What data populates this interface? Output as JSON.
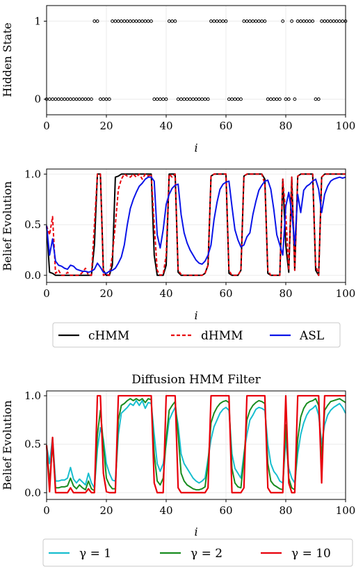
{
  "chart_data": [
    {
      "type": "scatter",
      "title": "",
      "xlabel": "i",
      "ylabel": "Hidden State",
      "xlim": [
        0,
        100
      ],
      "ylim": [
        -0.2,
        1.2
      ],
      "xticks": [
        0,
        20,
        40,
        60,
        80,
        100
      ],
      "yticks": [
        0,
        1
      ],
      "grid": true,
      "series": [
        {
          "values": [
            0,
            0,
            0,
            0,
            0,
            0,
            0,
            0,
            0,
            0,
            0,
            0,
            0,
            0,
            0,
            0,
            1,
            1,
            0,
            0,
            0,
            0,
            1,
            1,
            1,
            1,
            1,
            1,
            1,
            1,
            1,
            1,
            1,
            1,
            1,
            1,
            0,
            0,
            0,
            0,
            0,
            1,
            1,
            1,
            0,
            0,
            0,
            0,
            0,
            0,
            0,
            0,
            0,
            0,
            0,
            1,
            1,
            1,
            1,
            1,
            1,
            0,
            0,
            0,
            0,
            0,
            1,
            1,
            1,
            1,
            1,
            1,
            1,
            1,
            0,
            0,
            0,
            0,
            0,
            1,
            0,
            0,
            1,
            0,
            1,
            1,
            1,
            1,
            1,
            1,
            0,
            0,
            1,
            1,
            1,
            1,
            1,
            1,
            1,
            1,
            1
          ]
        }
      ]
    },
    {
      "type": "line",
      "title": "",
      "xlabel": "i",
      "ylabel": "Belief Evolution",
      "xlim": [
        0,
        100
      ],
      "ylim": [
        -0.07,
        1.05
      ],
      "xticks": [
        0,
        20,
        40,
        60,
        80,
        100
      ],
      "yticks": [
        0,
        0.5,
        1
      ],
      "ytick_labels": [
        "0.0",
        "0.5",
        "1.0"
      ],
      "grid": true,
      "legend": "below",
      "series": [
        {
          "name": "cHMM",
          "color": "#000000",
          "dash": "solid",
          "values": [
            0.49,
            0.03,
            0.02,
            0,
            0,
            0,
            0,
            0,
            0,
            0,
            0,
            0,
            0,
            0,
            0,
            0,
            0.3,
            1,
            1,
            0.05,
            0,
            0,
            0.1,
            0.97,
            0.98,
            1,
            1,
            1,
            1,
            1,
            1,
            1,
            1,
            1,
            1,
            1,
            0.2,
            0,
            0,
            0,
            0.1,
            1,
            1,
            1,
            0.03,
            0,
            0,
            0,
            0,
            0,
            0,
            0,
            0,
            0.02,
            0.1,
            0.98,
            1,
            1,
            1,
            1,
            1,
            0.02,
            0,
            0,
            0,
            0.05,
            0.98,
            1,
            1,
            1,
            1,
            1,
            1,
            0.95,
            0.02,
            0,
            0,
            0,
            0,
            0.95,
            0.3,
            0.03,
            0.97,
            0.05,
            0.98,
            1,
            1,
            1,
            1,
            1,
            0.05,
            0,
            0.97,
            1,
            1,
            1,
            1,
            1,
            1,
            1,
            1
          ]
        },
        {
          "name": "dHMM",
          "color": "#e8000b",
          "dash": "dashed",
          "values": [
            0.49,
            0.4,
            0.58,
            0.02,
            0.05,
            0,
            0,
            0.03,
            0,
            0,
            0,
            0,
            0.03,
            0.07,
            0,
            0,
            0.5,
            1,
            1,
            0,
            0.01,
            0,
            0.2,
            0.5,
            0.85,
            0.95,
            1,
            0.98,
            0.97,
            1,
            0.97,
            1,
            0.95,
            1,
            0.98,
            1,
            0.5,
            0.05,
            0,
            0.01,
            0.2,
            1,
            0.97,
            1,
            0.05,
            0.01,
            0,
            0,
            0,
            0,
            0,
            0,
            0,
            0.02,
            0.1,
            0.98,
            1,
            1,
            1,
            1,
            1,
            0.05,
            0,
            0,
            0,
            0.05,
            0.98,
            1,
            1,
            1,
            1,
            1,
            1,
            0.9,
            0.05,
            0,
            0,
            0,
            0,
            0.95,
            0.6,
            0.05,
            0.97,
            0.05,
            0.98,
            1,
            1,
            1,
            1,
            1,
            0.1,
            0,
            0.97,
            1,
            1,
            1,
            1,
            1,
            1,
            1,
            1
          ]
        },
        {
          "name": "ASL",
          "color": "#0a14e8",
          "dash": "solid",
          "values": [
            0.49,
            0.2,
            0.36,
            0.14,
            0.1,
            0.09,
            0.07,
            0.06,
            0.1,
            0.09,
            0.06,
            0.05,
            0.04,
            0.04,
            0.03,
            0.04,
            0.06,
            0.12,
            0.08,
            0.03,
            0.02,
            0.04,
            0.05,
            0.07,
            0.12,
            0.18,
            0.3,
            0.5,
            0.66,
            0.75,
            0.82,
            0.88,
            0.91,
            0.95,
            0.97,
            0.97,
            0.93,
            0.4,
            0.27,
            0.45,
            0.7,
            0.8,
            0.86,
            0.89,
            0.9,
            0.6,
            0.42,
            0.32,
            0.25,
            0.2,
            0.15,
            0.12,
            0.11,
            0.14,
            0.2,
            0.3,
            0.55,
            0.72,
            0.85,
            0.9,
            0.92,
            0.93,
            0.68,
            0.45,
            0.35,
            0.28,
            0.3,
            0.38,
            0.42,
            0.6,
            0.73,
            0.84,
            0.89,
            0.93,
            0.94,
            0.85,
            0.65,
            0.4,
            0.3,
            0.2,
            0.68,
            0.82,
            0.62,
            0.3,
            0.8,
            0.62,
            0.84,
            0.88,
            0.9,
            0.93,
            0.95,
            0.85,
            0.62,
            0.8,
            0.88,
            0.93,
            0.95,
            0.96,
            0.97,
            0.96,
            0.97
          ]
        }
      ]
    },
    {
      "type": "line",
      "title": "Diffusion HMM Filter",
      "xlabel": "i",
      "ylabel": "Belief Evolution",
      "xlim": [
        0,
        100
      ],
      "ylim": [
        -0.07,
        1.05
      ],
      "xticks": [
        0,
        20,
        40,
        60,
        80,
        100
      ],
      "yticks": [
        0,
        0.5,
        1
      ],
      "ytick_labels": [
        "0.0",
        "0.5",
        "1.0"
      ],
      "grid": true,
      "legend": "below",
      "series": [
        {
          "name": "γ = 1",
          "color": "#17becf",
          "dash": "solid",
          "values": [
            0.49,
            0.3,
            0.57,
            0.12,
            0.12,
            0.13,
            0.13,
            0.15,
            0.26,
            0.14,
            0.1,
            0.14,
            0.11,
            0.08,
            0.2,
            0.1,
            0.05,
            0.45,
            0.67,
            0.55,
            0.3,
            0.2,
            0.13,
            0.12,
            0.6,
            0.82,
            0.85,
            0.88,
            0.92,
            0.9,
            0.95,
            0.9,
            0.95,
            0.87,
            0.93,
            0.92,
            0.6,
            0.3,
            0.22,
            0.3,
            0.5,
            0.75,
            0.82,
            0.88,
            0.7,
            0.4,
            0.3,
            0.25,
            0.2,
            0.15,
            0.12,
            0.1,
            0.12,
            0.15,
            0.35,
            0.55,
            0.68,
            0.75,
            0.82,
            0.86,
            0.88,
            0.85,
            0.4,
            0.25,
            0.2,
            0.15,
            0.4,
            0.6,
            0.75,
            0.8,
            0.86,
            0.88,
            0.87,
            0.85,
            0.5,
            0.3,
            0.22,
            0.18,
            0.12,
            0.1,
            0.55,
            0.25,
            0.15,
            0.1,
            0.4,
            0.6,
            0.72,
            0.8,
            0.85,
            0.87,
            0.9,
            0.8,
            0.5,
            0.7,
            0.8,
            0.85,
            0.88,
            0.9,
            0.92,
            0.88,
            0.82
          ]
        },
        {
          "name": "γ = 2",
          "color": "#188c1f",
          "dash": "solid",
          "values": [
            0.49,
            0.1,
            0.5,
            0.05,
            0.05,
            0.06,
            0.06,
            0.07,
            0.15,
            0.07,
            0.04,
            0.08,
            0.05,
            0.03,
            0.12,
            0.04,
            0.02,
            0.6,
            0.85,
            0.5,
            0.15,
            0.08,
            0.04,
            0.04,
            0.75,
            0.9,
            0.92,
            0.95,
            0.97,
            0.95,
            0.97,
            0.95,
            0.97,
            0.93,
            0.97,
            0.96,
            0.4,
            0.12,
            0.08,
            0.15,
            0.55,
            0.85,
            0.9,
            0.94,
            0.6,
            0.2,
            0.12,
            0.08,
            0.06,
            0.04,
            0.03,
            0.03,
            0.04,
            0.06,
            0.3,
            0.72,
            0.82,
            0.88,
            0.92,
            0.94,
            0.95,
            0.93,
            0.25,
            0.1,
            0.06,
            0.05,
            0.35,
            0.75,
            0.85,
            0.9,
            0.93,
            0.95,
            0.94,
            0.92,
            0.3,
            0.12,
            0.08,
            0.06,
            0.04,
            0.03,
            0.7,
            0.15,
            0.05,
            0.03,
            0.55,
            0.78,
            0.87,
            0.92,
            0.94,
            0.95,
            0.97,
            0.9,
            0.35,
            0.85,
            0.9,
            0.94,
            0.95,
            0.96,
            0.97,
            0.95,
            0.93
          ]
        },
        {
          "name": "γ = 10",
          "color": "#e8000b",
          "dash": "solid",
          "values": [
            0.49,
            0.01,
            0.57,
            0,
            0,
            0,
            0,
            0,
            0.05,
            0,
            0,
            0,
            0,
            0,
            0.04,
            0,
            0,
            1,
            1,
            0.2,
            0.01,
            0,
            0,
            0,
            1,
            1,
            1,
            1,
            1,
            1,
            1,
            1,
            1,
            1,
            1,
            1,
            0.1,
            0,
            0,
            0,
            1,
            1,
            1,
            1,
            0.05,
            0,
            0,
            0,
            0,
            0,
            0,
            0,
            0,
            0,
            0.05,
            1,
            1,
            1,
            1,
            1,
            1,
            1,
            0,
            0,
            0,
            0,
            0.05,
            1,
            1,
            1,
            1,
            1,
            1,
            1,
            0.05,
            0,
            0,
            0,
            0,
            0,
            1,
            0.1,
            0,
            0,
            1,
            1,
            1,
            1,
            1,
            1,
            1,
            1,
            0.1,
            1,
            1,
            1,
            1,
            1,
            1,
            1,
            1
          ]
        }
      ]
    }
  ]
}
